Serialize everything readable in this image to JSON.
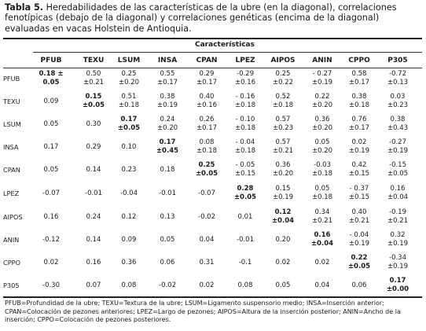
{
  "caption": {
    "label": "Tabla 5.",
    "text": "Heredabilidades de las características de la ubre (en la diagonal), correlaciones fenotípicas (debajo de la diagonal) y correlaciones genéticas (encima de la diagonal) evaluadas en vacas Holstein de Antioquia."
  },
  "table": {
    "group_header": "Características",
    "columns": [
      "PFUB",
      "TEXU",
      "LSUM",
      "INSA",
      "CPAN",
      "LPEZ",
      "AIPOS",
      "ANIN",
      "CPPO",
      "P305"
    ],
    "rows": [
      {
        "label": "PFUB",
        "cells": [
          [
            "0.18 ±",
            "0.05"
          ],
          [
            "0.50",
            "±0.21"
          ],
          [
            "0.25",
            "±0.20"
          ],
          [
            "0.55",
            "±0.17"
          ],
          [
            "0.29",
            "±0.17"
          ],
          [
            "-0.29",
            "±0.16"
          ],
          [
            "0.25",
            "±0.22"
          ],
          [
            "- 0.27",
            "±0.19"
          ],
          [
            "0.58",
            "±0.17"
          ],
          [
            "-0.72",
            "±0.13"
          ]
        ]
      },
      {
        "label": "TEXU",
        "cells": [
          [
            "0.09"
          ],
          [
            "0.15",
            "±0.05"
          ],
          [
            "0.51",
            "±0.18"
          ],
          [
            "0.38",
            "±0.19"
          ],
          [
            "0.40",
            "±0.16"
          ],
          [
            "- 0.16",
            "±0.18"
          ],
          [
            "0.52",
            "±0.18"
          ],
          [
            "0.22",
            "±0.20"
          ],
          [
            "0.38",
            "±0.18"
          ],
          [
            "0.03",
            "±0.23"
          ]
        ]
      },
      {
        "label": "LSUM",
        "cells": [
          [
            "0.05"
          ],
          [
            "0.30"
          ],
          [
            "0.17",
            "±0.05"
          ],
          [
            "0.24",
            "±0.20"
          ],
          [
            "0.26",
            "±0.17"
          ],
          [
            "- 0.10",
            "±0.18"
          ],
          [
            "0.57",
            "±0.23"
          ],
          [
            "0.36",
            "±0.20"
          ],
          [
            "0.76",
            "±0.17"
          ],
          [
            "0.38",
            "±0.43"
          ]
        ]
      },
      {
        "label": "INSA",
        "cells": [
          [
            "0.17"
          ],
          [
            "0.29"
          ],
          [
            "0.10"
          ],
          [
            "0.17",
            "±0.45"
          ],
          [
            "0.08",
            "±0.18"
          ],
          [
            "- 0.04",
            "±0.18"
          ],
          [
            "0.57",
            "±0.21"
          ],
          [
            "0.05",
            "±0.20"
          ],
          [
            "0.02",
            "±0.19"
          ],
          [
            "-0.27",
            "±0.19"
          ]
        ]
      },
      {
        "label": "CPAN",
        "cells": [
          [
            "0.05"
          ],
          [
            "0.14"
          ],
          [
            "0.23"
          ],
          [
            "0.18"
          ],
          [
            "0.25",
            "±0.05"
          ],
          [
            "- 0.05",
            "±0.15"
          ],
          [
            "0.36",
            "±0.20"
          ],
          [
            "-0.03",
            "±0.18"
          ],
          [
            "0.42",
            "±0.15"
          ],
          [
            "-0.15",
            "±0.05"
          ]
        ]
      },
      {
        "label": "LPEZ",
        "cells": [
          [
            "-0.07"
          ],
          [
            "-0.01"
          ],
          [
            "-0.04"
          ],
          [
            "-0.01"
          ],
          [
            "-0.07"
          ],
          [
            "0.28",
            "±0.05"
          ],
          [
            "0.15",
            "±0.19"
          ],
          [
            "0.05",
            "±0.18"
          ],
          [
            "- 0.37",
            "±0.15"
          ],
          [
            "0.16",
            "±0.04"
          ]
        ]
      },
      {
        "label": "AIPOS",
        "cells": [
          [
            "0.16"
          ],
          [
            "0.24"
          ],
          [
            "0.12"
          ],
          [
            "0.13"
          ],
          [
            "-0.02"
          ],
          [
            "0.01"
          ],
          [
            "0.12",
            "±0.04"
          ],
          [
            "0.34",
            "±0.21"
          ],
          [
            "0.40",
            "±0.21"
          ],
          [
            "-0.19",
            "±0.21"
          ]
        ]
      },
      {
        "label": "ANIN",
        "cells": [
          [
            "-0.12"
          ],
          [
            "0.14"
          ],
          [
            "0.09"
          ],
          [
            "0.05"
          ],
          [
            "0.04"
          ],
          [
            "-0.01"
          ],
          [
            "0.20"
          ],
          [
            "0.16",
            "±0.04"
          ],
          [
            "- 0.04",
            "±0.19"
          ],
          [
            "0.32",
            "±0.19"
          ]
        ]
      },
      {
        "label": "CPPO",
        "cells": [
          [
            "0.02"
          ],
          [
            "0.16"
          ],
          [
            "0.36"
          ],
          [
            "0.06"
          ],
          [
            "0.31"
          ],
          [
            "-0.1"
          ],
          [
            "0.02"
          ],
          [
            "0.02"
          ],
          [
            "0.22",
            "±0.05"
          ],
          [
            "-0.34",
            "±0.19"
          ]
        ]
      },
      {
        "label": "P305",
        "cells": [
          [
            "-0.30"
          ],
          [
            "0.07"
          ],
          [
            "0.08"
          ],
          [
            "-0.02"
          ],
          [
            "0.02"
          ],
          [
            "0.08"
          ],
          [
            "0.05"
          ],
          [
            "0.04"
          ],
          [
            "0.06"
          ],
          [
            "0.17",
            "±0.00"
          ]
        ]
      }
    ]
  },
  "footnote": "PFUB=Profundidad de la ubre; TEXU=Textura de la ubre; LSUM=Ligamento suspensorio medio; INSA=Inserción anterior; CPAN=Colocación de pezones anteriores; LPEZ=Largo de pezones; AIPOS=Altura de la inserción posterior; ANIN=Ancho de la inserción; CPPO=Colocación de pezones posteriores."
}
